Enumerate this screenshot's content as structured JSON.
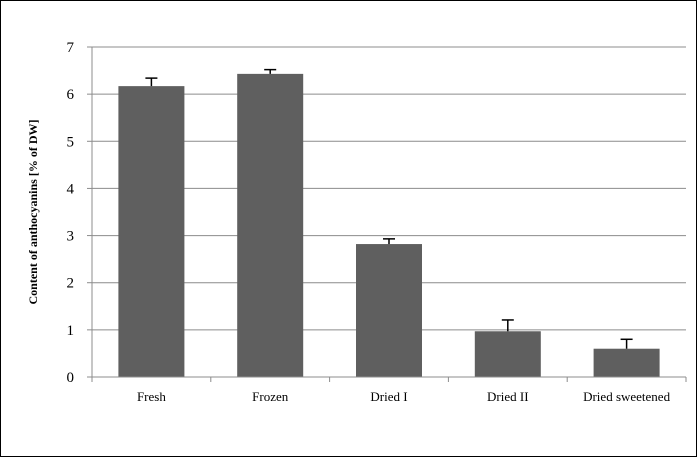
{
  "chart_data": {
    "type": "bar",
    "title": "",
    "xlabel": "",
    "ylabel": "Content of anthocyanins [% of DW]",
    "categories": [
      "Fresh",
      "Frozen",
      "Dried I",
      "Dried II",
      "Dried sweetened"
    ],
    "values": [
      6.17,
      6.43,
      2.82,
      0.97,
      0.6
    ],
    "error_plus": [
      0.17,
      0.09,
      0.11,
      0.24,
      0.2
    ],
    "ylim": [
      0,
      7
    ],
    "yticks": [
      "0",
      "1",
      "2",
      "3",
      "4",
      "5",
      "6",
      "7"
    ],
    "grid": "horizontal",
    "legend": "none",
    "colors": {
      "bar": "#5f5f5f",
      "grid": "#8c8c8c",
      "axis": "#8c8c8c",
      "error": "#000000"
    }
  }
}
